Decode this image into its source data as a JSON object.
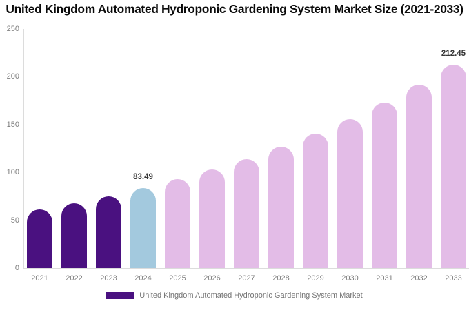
{
  "header": {
    "title": "United Kingdom Automated Hydroponic Gardening System Market Size (2021-2033)"
  },
  "legend": {
    "label": "United Kingdom Automated Hydroponic Gardening System Market",
    "color": "#4A1180"
  },
  "colors": {
    "historical_bar": "#4A1180",
    "current_year_bar": "#A3C9DE",
    "forecast_bar": "#E3BCE7",
    "axis_line": "#DCDCDC",
    "tick_label": "#7D7D7D",
    "value_label": "#383838",
    "title_text": "#0B0B0B",
    "legend_text": "#757575"
  },
  "chart_data": {
    "type": "bar",
    "title": "United Kingdom Automated Hydroponic Gardening System Market Size (2021-2033)",
    "categories": [
      "2021",
      "2022",
      "2023",
      "2024",
      "2025",
      "2026",
      "2027",
      "2028",
      "2029",
      "2030",
      "2031",
      "2032",
      "2033"
    ],
    "values": [
      61,
      68,
      75,
      83.49,
      92.6,
      102.8,
      114,
      126.5,
      140.3,
      155.6,
      172.6,
      191.5,
      212.45
    ],
    "bar_colors": [
      "#4A1180",
      "#4A1180",
      "#4A1180",
      "#A3C9DE",
      "#E3BCE7",
      "#E3BCE7",
      "#E3BCE7",
      "#E3BCE7",
      "#E3BCE7",
      "#E3BCE7",
      "#E3BCE7",
      "#E3BCE7",
      "#E3BCE7"
    ],
    "value_labels": [
      null,
      null,
      null,
      "83.49",
      null,
      null,
      null,
      null,
      null,
      null,
      null,
      null,
      "212.45"
    ],
    "xlabel": "",
    "ylabel": "",
    "ylim": [
      0,
      250
    ],
    "yticks": [
      0,
      50,
      100,
      150,
      200,
      250
    ],
    "grid": false,
    "legend_position": "bottom",
    "legend_entries": [
      "United Kingdom Automated Hydroponic Gardening System Market"
    ]
  }
}
